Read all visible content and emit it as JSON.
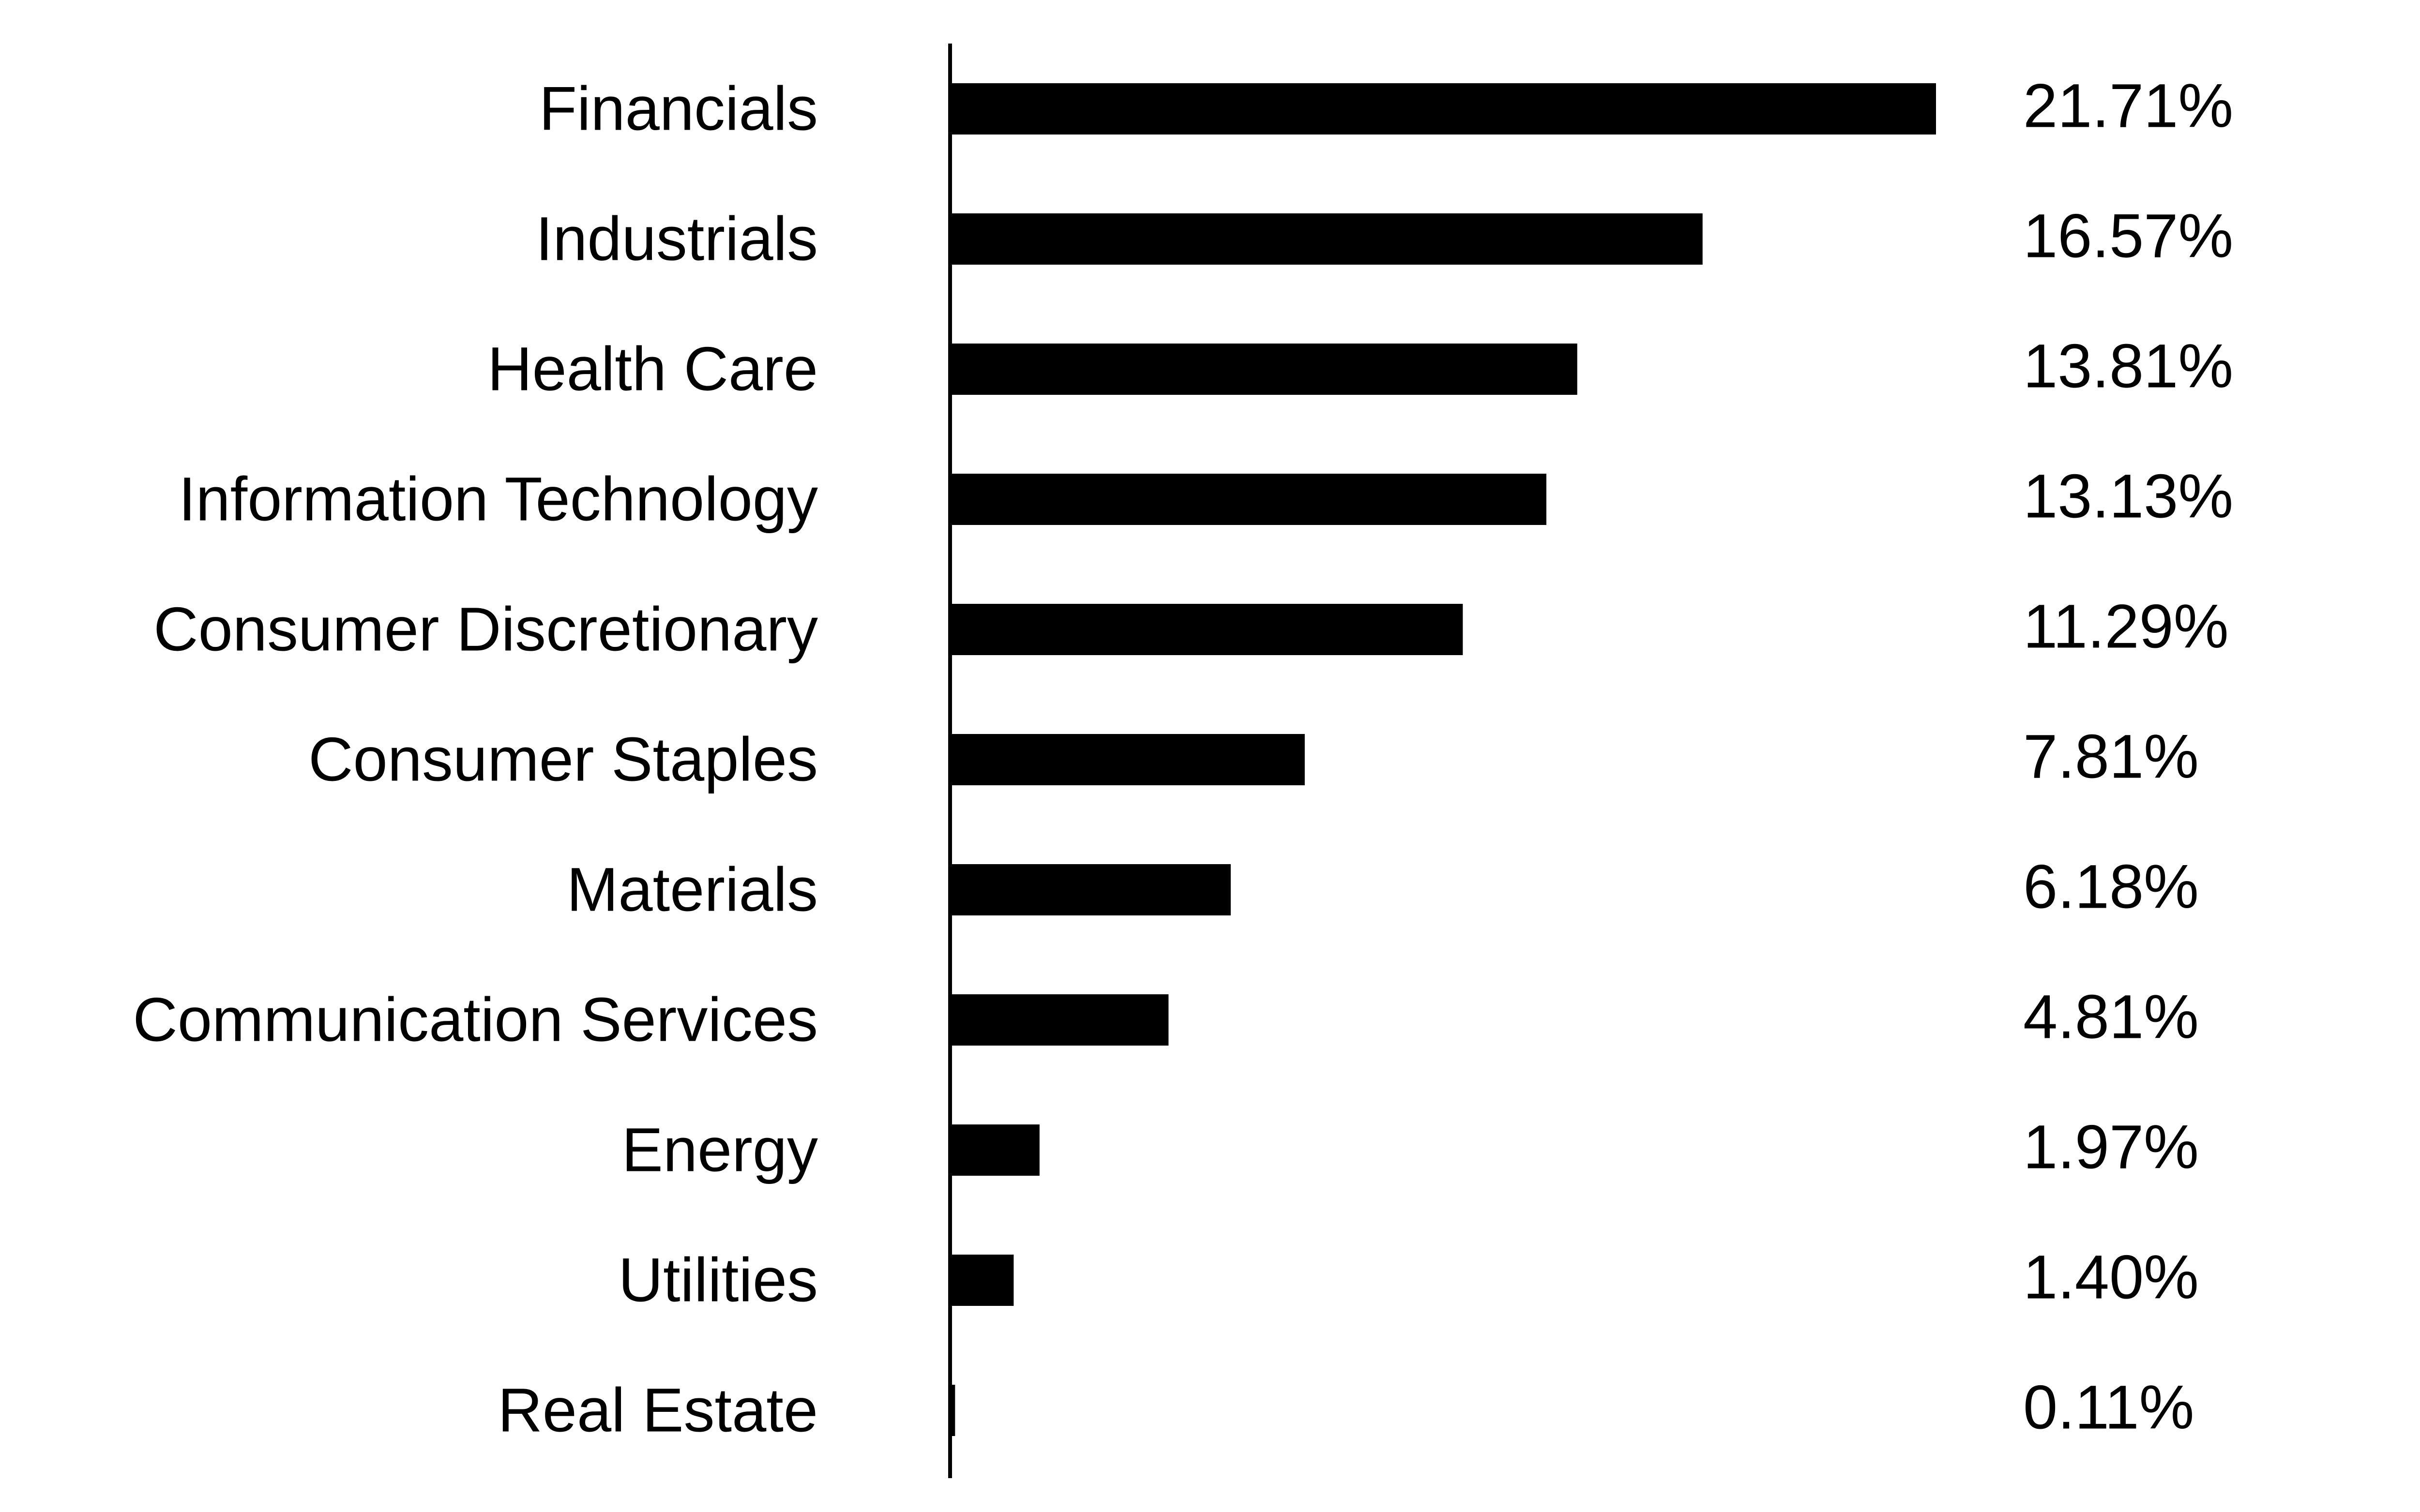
{
  "chart_data": {
    "type": "bar",
    "orientation": "horizontal",
    "title": "",
    "xlabel": "",
    "ylabel": "",
    "categories": [
      "Financials",
      "Industrials",
      "Health Care",
      "Information Technology",
      "Consumer Discretionary",
      "Consumer Staples",
      "Materials",
      "Communication Services",
      "Energy",
      "Utilities",
      "Real Estate"
    ],
    "values": [
      21.71,
      16.57,
      13.81,
      13.13,
      11.29,
      7.81,
      6.18,
      4.81,
      1.97,
      1.4,
      0.11
    ],
    "value_labels": [
      "21.71%",
      "16.57%",
      "13.81%",
      "13.13%",
      "11.29%",
      "7.81%",
      "6.18%",
      "4.81%",
      "1.97%",
      "1.40%",
      "0.11%"
    ],
    "xlim": [
      0,
      21.71
    ],
    "grid": false,
    "legend": "none",
    "bar_color": "#000000",
    "axis_color": "#000000"
  }
}
